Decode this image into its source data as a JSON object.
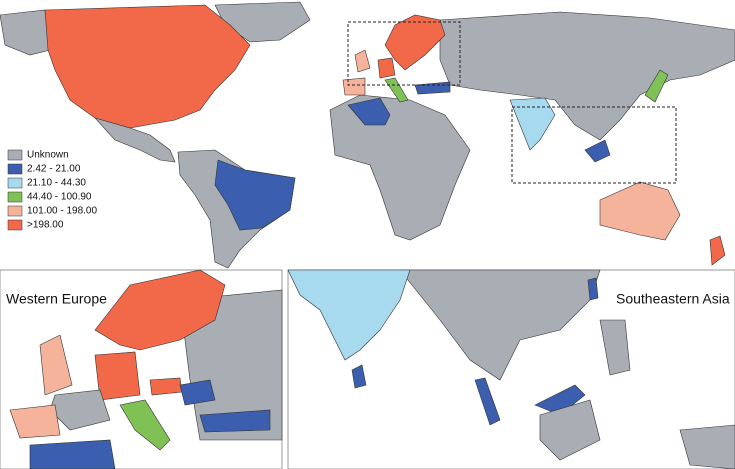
{
  "legend": {
    "items": [
      {
        "label": "Unknown",
        "color": "#a9adb4"
      },
      {
        "label": "2.42 - 21.00",
        "color": "#3b5fae"
      },
      {
        "label": "21.10 - 44.30",
        "color": "#a7d9ef"
      },
      {
        "label": "44.40 - 100.90",
        "color": "#80c156"
      },
      {
        "label": "101.00 - 198.00",
        "color": "#f5b39b"
      },
      {
        "label": ">198.00",
        "color": "#f2694a"
      }
    ]
  },
  "insets": [
    {
      "title": "Western Europe"
    },
    {
      "title": "Southeastern Asia"
    }
  ]
}
